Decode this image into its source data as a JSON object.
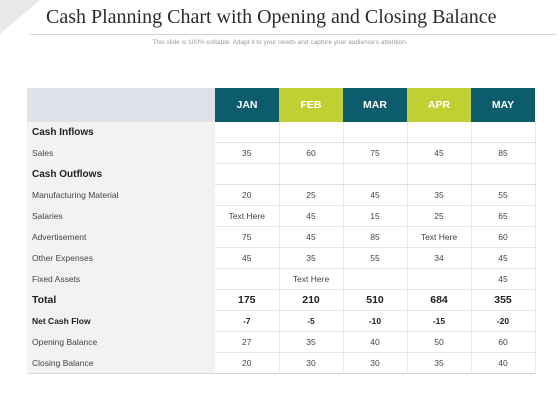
{
  "slide": {
    "title": "Cash Planning Chart with Opening and Closing Balance",
    "subtitle": "This slide is 100% editable. Adapt it to your needs and capture your audience's attention."
  },
  "table": {
    "months": [
      "JAN",
      "FEB",
      "MAR",
      "APR",
      "MAY"
    ],
    "month_colors": [
      "#0c5c6d",
      "#c2cf32",
      "#0c5c6d",
      "#c2cf32",
      "#0c5c6d"
    ],
    "rows": [
      {
        "label": "Cash Inflows",
        "kind": "section",
        "values": [
          "",
          "",
          "",
          "",
          ""
        ]
      },
      {
        "label": "Sales",
        "kind": "normal",
        "values": [
          "35",
          "60",
          "75",
          "45",
          "85"
        ]
      },
      {
        "label": "Cash Outflows",
        "kind": "section",
        "values": [
          "",
          "",
          "",
          "",
          ""
        ]
      },
      {
        "label": "Manufacturing Material",
        "kind": "normal",
        "values": [
          "20",
          "25",
          "45",
          "35",
          "55"
        ]
      },
      {
        "label": "Salaries",
        "kind": "normal",
        "values": [
          "Text Here",
          "45",
          "15",
          "25",
          "65"
        ]
      },
      {
        "label": "Advertisement",
        "kind": "normal",
        "values": [
          "75",
          "45",
          "85",
          "Text Here",
          "60"
        ]
      },
      {
        "label": "Other Expenses",
        "kind": "normal",
        "values": [
          "45",
          "35",
          "55",
          "34",
          "45"
        ]
      },
      {
        "label": "Fixed Assets",
        "kind": "normal",
        "values": [
          "",
          "Text Here",
          "",
          "",
          "45"
        ]
      },
      {
        "label": "Total",
        "kind": "total",
        "values": [
          "175",
          "210",
          "510",
          "684",
          "355"
        ]
      },
      {
        "label": "Net Cash Flow",
        "kind": "net",
        "values": [
          "-7",
          "-5",
          "-10",
          "-15",
          "-20"
        ]
      },
      {
        "label": "Opening Balance",
        "kind": "normal",
        "values": [
          "27",
          "35",
          "40",
          "50",
          "60"
        ]
      },
      {
        "label": "Closing Balance",
        "kind": "normal",
        "values": [
          "20",
          "30",
          "30",
          "35",
          "40"
        ]
      }
    ]
  }
}
